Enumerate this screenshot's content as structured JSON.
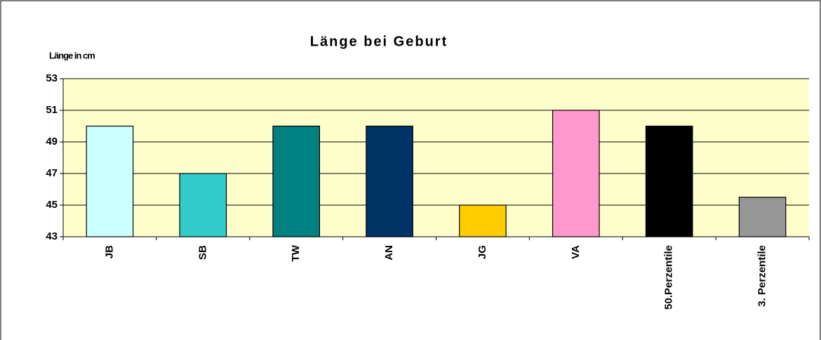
{
  "chart_data": {
    "type": "bar",
    "title": "Länge bei Geburt",
    "y_label": "Länge in cm",
    "categories": [
      "JB",
      "SB",
      "TW",
      "AN",
      "JG",
      "VA",
      "50.Perzentile",
      "3. Perzentile"
    ],
    "values": [
      50,
      47,
      50,
      50,
      45,
      51,
      50,
      45.5
    ],
    "colors": [
      "#ccffff",
      "#33cccc",
      "#008080",
      "#003366",
      "#ffcc00",
      "#ff99cc",
      "#000000",
      "#969696"
    ],
    "ylim": [
      43,
      53
    ],
    "yticks": [
      43,
      45,
      47,
      49,
      51,
      53
    ],
    "grid": true
  }
}
